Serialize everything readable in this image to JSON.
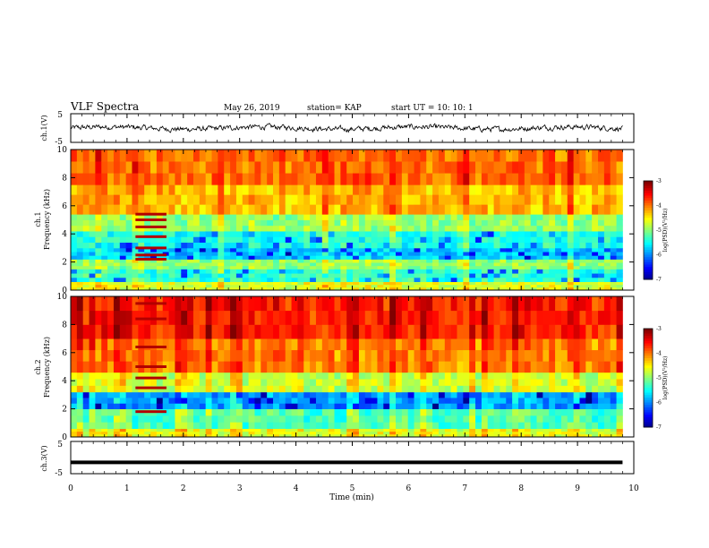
{
  "header": {
    "title": "VLF Spectra",
    "date": "May 26, 2019",
    "station": "station= KAP",
    "start_ut": "start  UT =   10: 10: 1"
  },
  "chart_data": [
    {
      "type": "line",
      "name": "ch.1 waveform",
      "ylabel": "ch.1(V)",
      "ylim": [
        -5,
        5
      ],
      "yticklabels": [
        "5",
        "-5"
      ],
      "xlim": [
        0,
        10
      ],
      "note_values": "noisy signal fluctuating roughly between -1 and +1 V around 0"
    },
    {
      "type": "heatmap",
      "name": "ch.1 spectrogram",
      "ylabel": "ch.1\nFrequency (kHz)",
      "ylim": [
        0,
        10
      ],
      "yticklabels": [
        "0",
        "2",
        "4",
        "6",
        "8",
        "10"
      ],
      "xlim": [
        0,
        9.8
      ],
      "colorbar": {
        "label": "log(PSD)(V²/Hz)",
        "range": [
          -7,
          -3
        ],
        "ticklabels": [
          "-3",
          "-4",
          "-5",
          "-6",
          "-7"
        ]
      },
      "bands": [
        {
          "fmin": 0.0,
          "fmax": 0.6,
          "level": -4.6
        },
        {
          "fmin": 0.6,
          "fmax": 1.5,
          "level": -5.3
        },
        {
          "fmin": 1.5,
          "fmax": 2.2,
          "level": -4.9
        },
        {
          "fmin": 2.2,
          "fmax": 3.0,
          "level": -5.7
        },
        {
          "fmin": 3.0,
          "fmax": 4.2,
          "level": -5.4
        },
        {
          "fmin": 4.2,
          "fmax": 5.4,
          "level": -4.9
        },
        {
          "fmin": 5.4,
          "fmax": 7.5,
          "level": -4.2
        },
        {
          "fmin": 7.5,
          "fmax": 10.0,
          "level": -3.9
        }
      ],
      "burst": {
        "tmin": 1.15,
        "tmax": 1.7,
        "lines_khz": [
          2.2,
          2.5,
          3.0,
          3.8,
          4.5,
          5.0,
          5.4
        ]
      }
    },
    {
      "type": "heatmap",
      "name": "ch.2 spectrogram",
      "ylabel": "ch.2\nFrequency (kHz)",
      "ylim": [
        0,
        10
      ],
      "yticklabels": [
        "0",
        "2",
        "4",
        "6",
        "8",
        "10"
      ],
      "xlim": [
        0,
        9.8
      ],
      "colorbar": {
        "label": "log(PSD)(V²/Hz)",
        "range": [
          -7,
          -3
        ],
        "ticklabels": [
          "-3",
          "-4",
          "-5",
          "-6",
          "-7"
        ]
      },
      "bands": [
        {
          "fmin": 0.0,
          "fmax": 0.6,
          "level": -4.6
        },
        {
          "fmin": 0.6,
          "fmax": 2.0,
          "level": -5.2
        },
        {
          "fmin": 2.0,
          "fmax": 3.2,
          "level": -5.9
        },
        {
          "fmin": 3.2,
          "fmax": 4.6,
          "level": -4.7
        },
        {
          "fmin": 4.6,
          "fmax": 7.0,
          "level": -4.0
        },
        {
          "fmin": 7.0,
          "fmax": 10.0,
          "level": -3.6
        }
      ],
      "burst": {
        "tmin": 1.15,
        "tmax": 1.7,
        "lines_khz": [
          1.8,
          3.5,
          4.2,
          5.0,
          6.4,
          8.4,
          9.5
        ]
      }
    },
    {
      "type": "line",
      "name": "ch.3 waveform",
      "ylabel": "ch.3(V)",
      "ylim": [
        -5,
        5
      ],
      "yticklabels": [
        "5",
        "-5"
      ],
      "xlim": [
        0,
        10
      ],
      "values_constant": -1.5
    }
  ],
  "xaxis": {
    "label": "Time (min)",
    "ticks": [
      0,
      1,
      2,
      3,
      4,
      5,
      6,
      7,
      8,
      9,
      10
    ],
    "ticklabels": [
      "0",
      "1",
      "2",
      "3",
      "4",
      "5",
      "6",
      "7",
      "8",
      "9",
      "10"
    ]
  }
}
